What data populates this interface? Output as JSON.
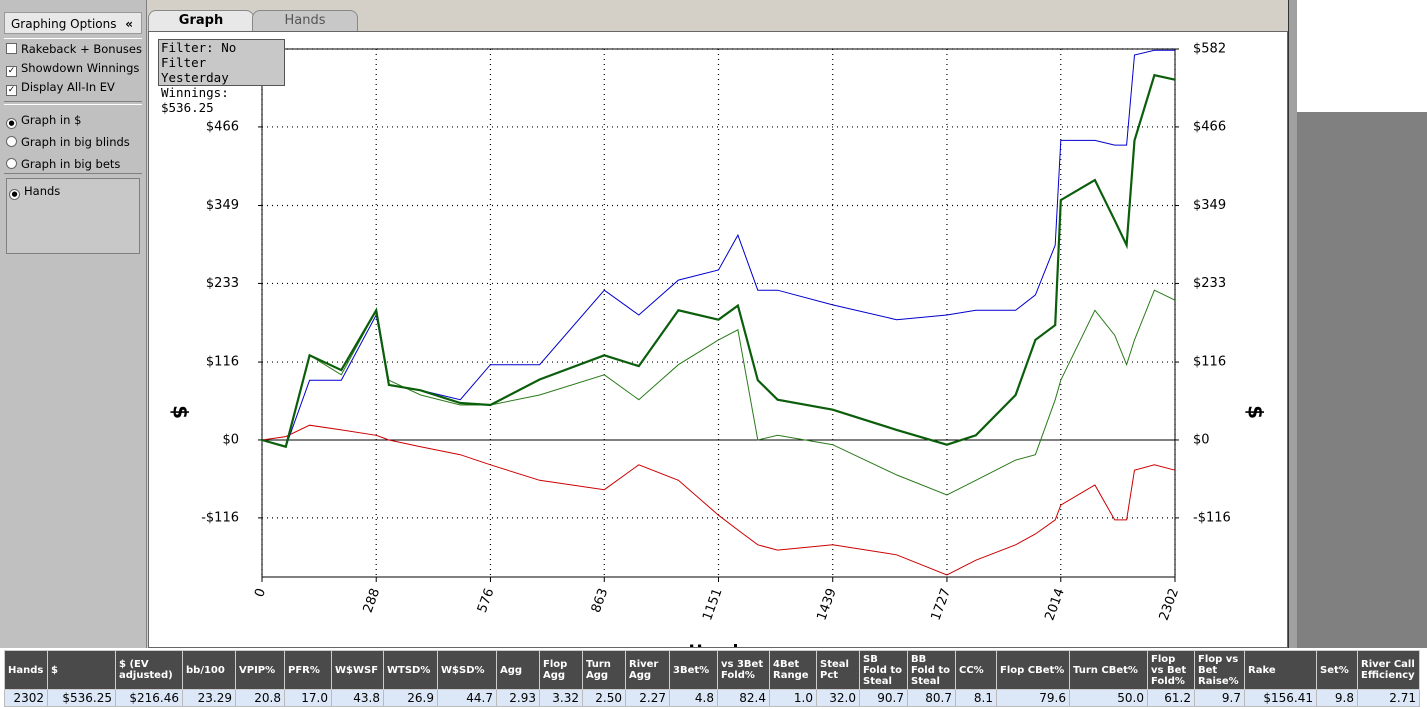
{
  "sidebar": {
    "title": "Graphing Options",
    "collapse": "«",
    "checkboxes": [
      {
        "label": "Rakeback + Bonuses",
        "checked": false
      },
      {
        "label": "Showdown Winnings",
        "checked": true
      },
      {
        "label": "Display All-In EV",
        "checked": true
      }
    ],
    "radios": [
      {
        "label": "Graph in $",
        "checked": true
      },
      {
        "label": "Graph in big blinds",
        "checked": false
      },
      {
        "label": "Graph in big bets",
        "checked": false
      }
    ],
    "axis_options": [
      {
        "label": "Hands",
        "checked": true
      }
    ]
  },
  "tabs": [
    "Graph",
    "Hands"
  ],
  "filter_box": [
    "Filter: No Filter",
    "Yesterday",
    "Winnings: $536.25"
  ],
  "chart_data": {
    "type": "line",
    "x_label": "Hands",
    "y_label": "$",
    "grid": true,
    "x": [
      0,
      60,
      120,
      200,
      288,
      320,
      400,
      500,
      576,
      700,
      863,
      950,
      1050,
      1151,
      1200,
      1250,
      1300,
      1439,
      1600,
      1727,
      1800,
      1900,
      1950,
      2000,
      2014,
      2100,
      2150,
      2180,
      2200,
      2250,
      2302
    ],
    "series": [
      {
        "color": "#0000cc",
        "width": 1,
        "values": [
          0,
          -10,
          89,
          89,
          186,
          82,
          74,
          60,
          112,
          112,
          223,
          186,
          238,
          253,
          305,
          223,
          223,
          201,
          179,
          186,
          193,
          193,
          216,
          290,
          446,
          446,
          439,
          439,
          573,
          580,
          580
        ]
      },
      {
        "color": "#2a7a1a",
        "width": 1,
        "values": [
          0,
          -10,
          126,
          97,
          193,
          89,
          67,
          52,
          52,
          67,
          97,
          60,
          112,
          149,
          164,
          0,
          7,
          -7,
          -52,
          -82,
          -60,
          -30,
          -22,
          60,
          89,
          193,
          156,
          112,
          149,
          223,
          208
        ]
      },
      {
        "color": "#cc0000",
        "width": 1,
        "values": [
          0,
          5,
          22,
          15,
          7,
          0,
          -10,
          -22,
          -37,
          -60,
          -74,
          -37,
          -60,
          -112,
          -134,
          -156,
          -164,
          -156,
          -171,
          -201,
          -179,
          -156,
          -140,
          -119,
          -97,
          -67,
          -119,
          -119,
          -45,
          -37,
          -45
        ]
      },
      {
        "color": "#0b5e0b",
        "width": 2.2,
        "values": [
          0,
          -10,
          126,
          104,
          193,
          82,
          74,
          55,
          52,
          90,
          126,
          110,
          193,
          179,
          200,
          89,
          60,
          45,
          15,
          -7,
          7,
          67,
          149,
          171,
          357,
          387,
          327,
          290,
          446,
          543,
          536.25
        ]
      }
    ],
    "xlim": [
      0,
      2302
    ],
    "xticks": [
      0,
      288,
      576,
      863,
      1151,
      1439,
      1727,
      2014,
      2302
    ],
    "ylim": [
      -204,
      582
    ],
    "yticks": [
      {
        "value": -116,
        "label": "-$116"
      },
      {
        "value": 0,
        "label": "$0"
      },
      {
        "value": 116,
        "label": "$116"
      },
      {
        "value": 233,
        "label": "$233"
      },
      {
        "value": 349,
        "label": "$349"
      },
      {
        "value": 466,
        "label": "$466"
      },
      {
        "value": 582,
        "label": "$582"
      }
    ]
  },
  "table": {
    "headers": [
      "Hands",
      "$",
      "$ (EV adjusted)",
      "bb/100",
      "VPIP%",
      "PFR%",
      "W$WSF",
      "WTSD%",
      "W$SD%",
      "Agg",
      "Flop Agg",
      "Turn Agg",
      "River Agg",
      "3Bet%",
      "vs 3Bet Fold%",
      "4Bet Range",
      "Steal Pct",
      "SB Fold to Steal",
      "BB Fold to Steal",
      "CC%",
      "Flop CBet%",
      "Turn CBet%",
      "Flop vs Bet Fold%",
      "Flop vs Bet Raise%",
      "Rake",
      "Set%",
      "River Call Efficiency"
    ],
    "rows": [
      [
        "2302",
        "$536.25",
        "$216.46",
        "23.29",
        "20.8",
        "17.0",
        "43.8",
        "26.9",
        "44.7",
        "2.93",
        "3.32",
        "2.50",
        "2.27",
        "4.8",
        "82.4",
        "1.0",
        "32.0",
        "90.7",
        "80.7",
        "8.1",
        "79.6",
        "50.0",
        "61.2",
        "9.7",
        "$156.41",
        "9.8",
        "2.71"
      ]
    ]
  }
}
